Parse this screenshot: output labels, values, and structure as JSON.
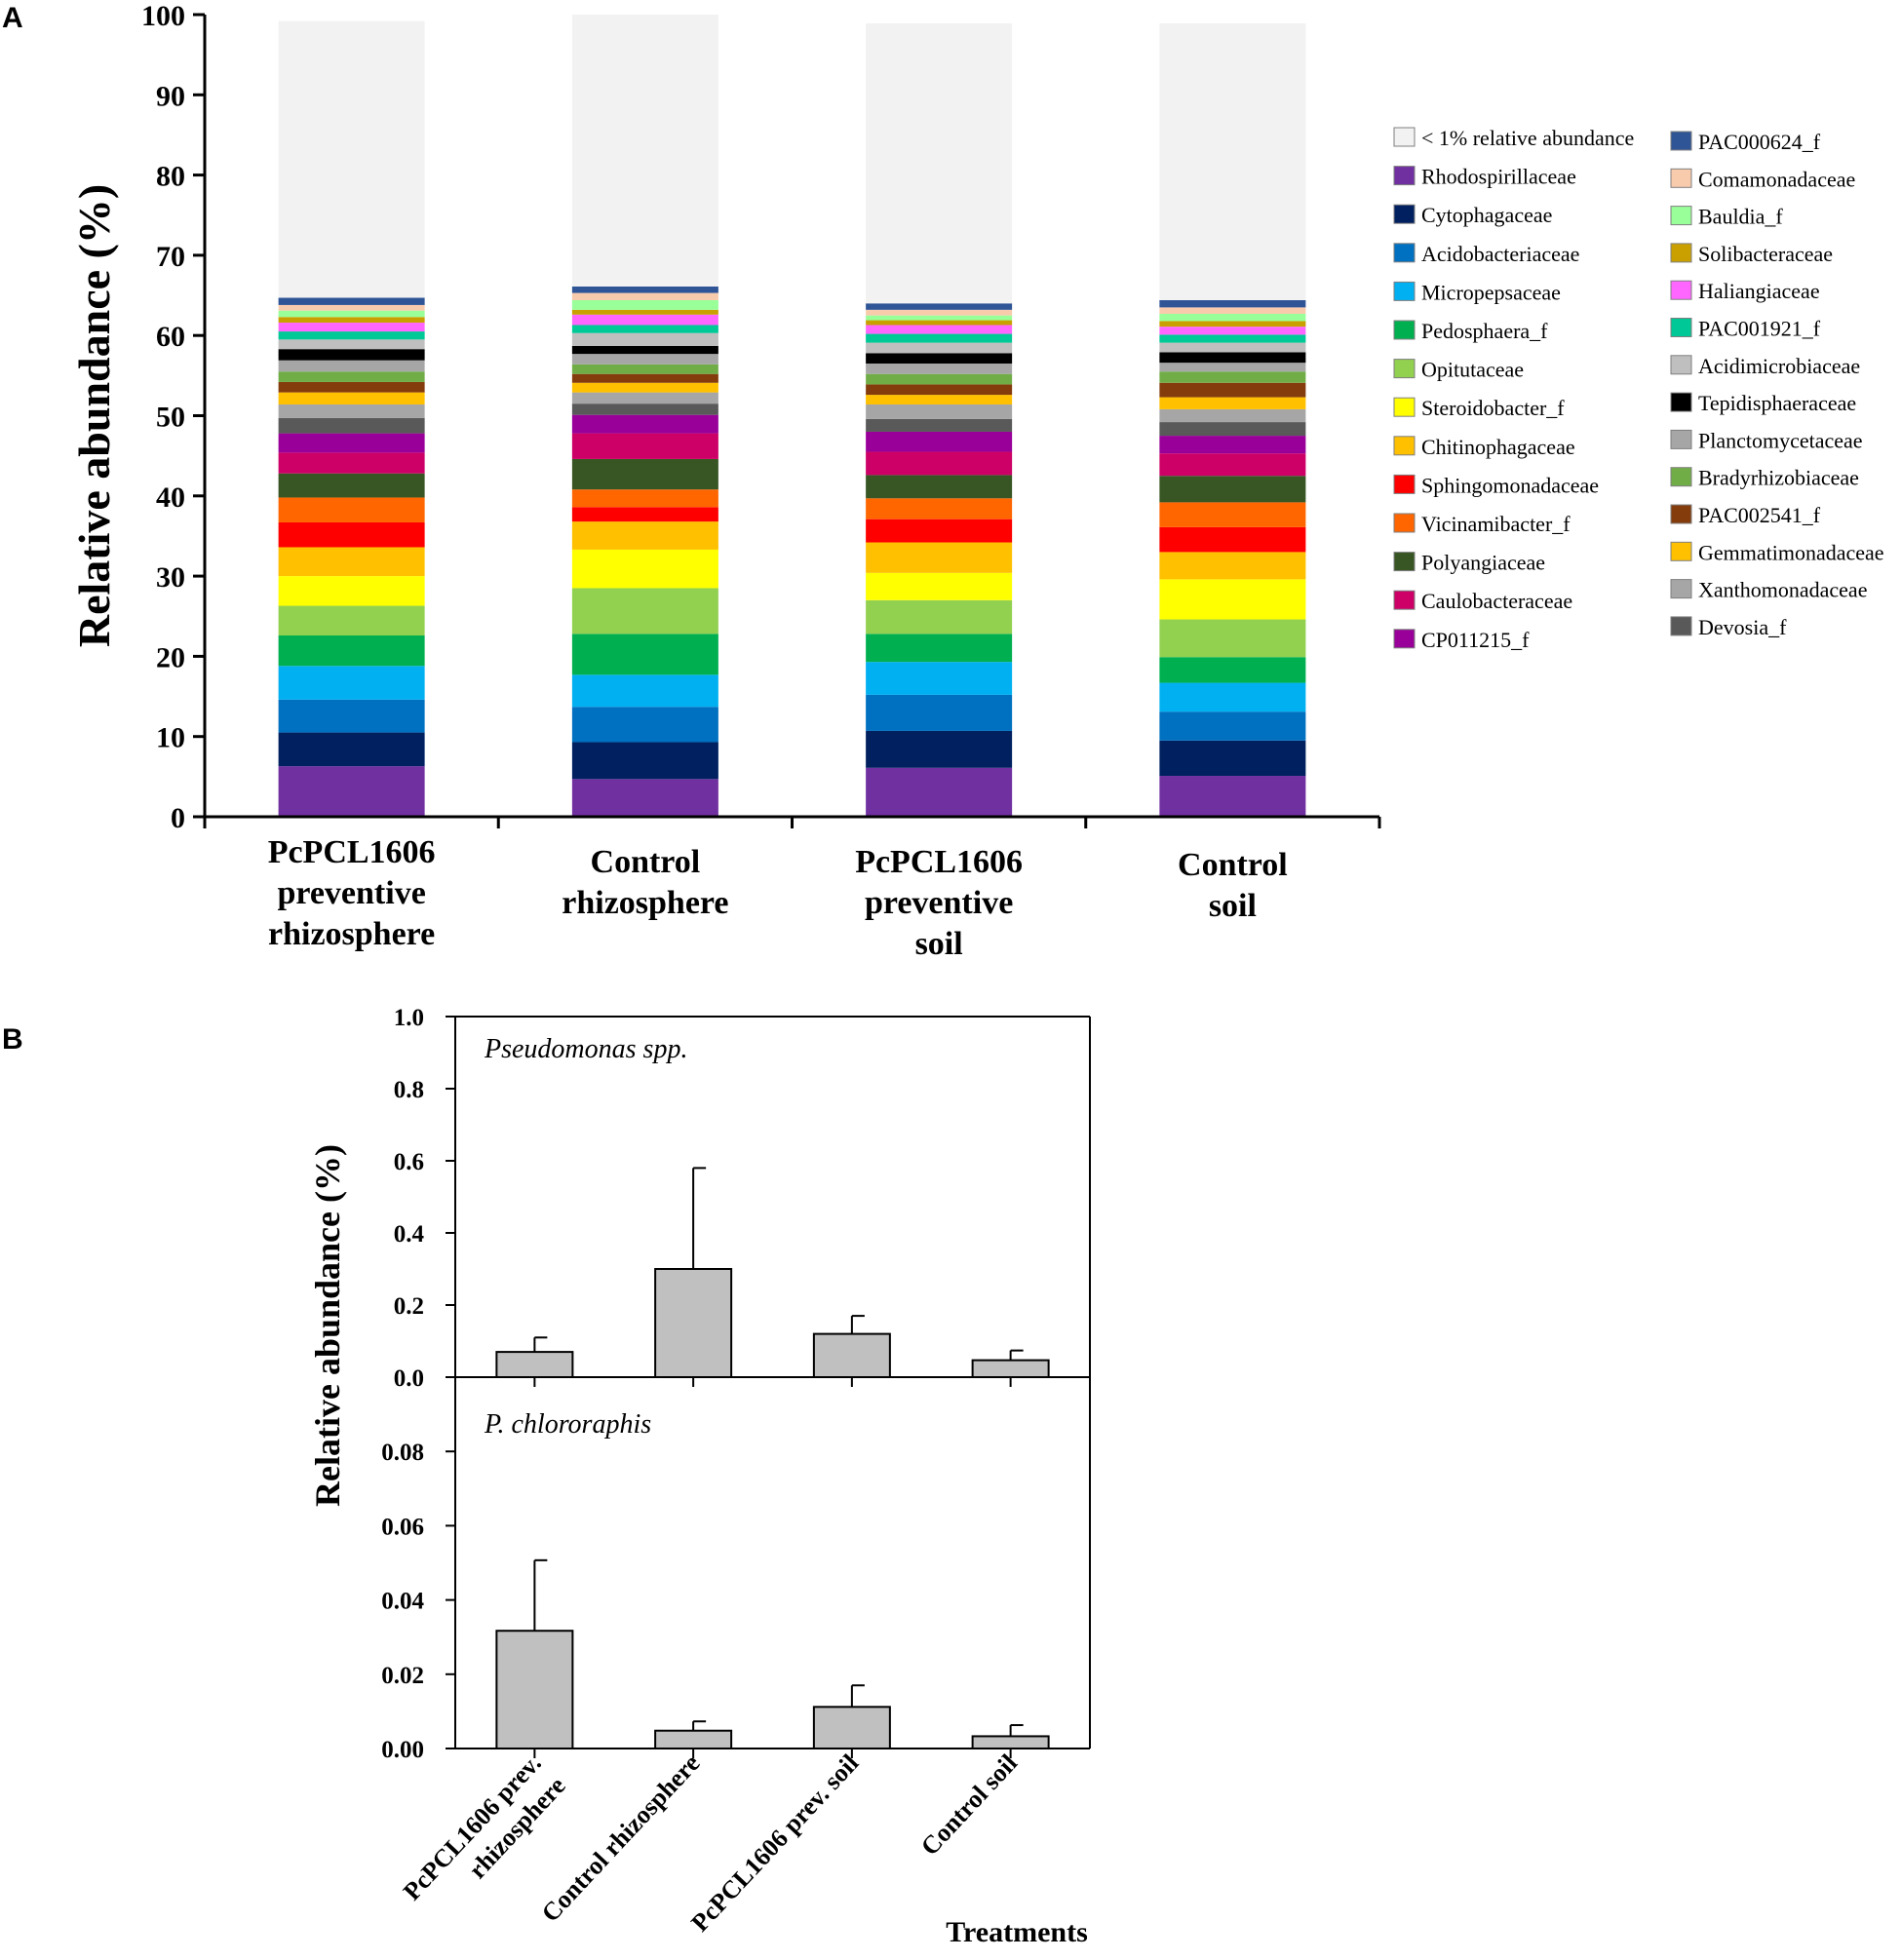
{
  "panel_a_label": "A",
  "panel_b_label": "B",
  "chart_data": [
    {
      "type": "bar",
      "stacked": true,
      "ylabel": "Relative abundance (%)",
      "ylim": [
        0,
        100
      ],
      "yticks": [
        0,
        10,
        20,
        30,
        40,
        50,
        60,
        70,
        80,
        90,
        100
      ],
      "categories": [
        [
          "PcPCL1606",
          "preventive",
          "rhizosphere"
        ],
        [
          "Control",
          "rhizosphere"
        ],
        [
          "PcPCL1606",
          "preventive",
          "soil"
        ],
        [
          "Control",
          "soil"
        ]
      ],
      "series": [
        {
          "name": "Rhodospirillaceae",
          "color": "#7030a0",
          "values": [
            6.3,
            4.7,
            6.1,
            5.1
          ]
        },
        {
          "name": "Cytophagaceae",
          "color": "#002060",
          "values": [
            4.2,
            4.6,
            4.6,
            4.4
          ]
        },
        {
          "name": "Acidobacteriaceae",
          "color": "#0070c0",
          "values": [
            4.1,
            4.4,
            4.5,
            3.6
          ]
        },
        {
          "name": "Micropepsaceae",
          "color": "#00b0f0",
          "values": [
            4.2,
            4.0,
            4.1,
            3.6
          ]
        },
        {
          "name": "Pedosphaera_f",
          "color": "#00b050",
          "values": [
            3.8,
            5.1,
            3.5,
            3.2
          ]
        },
        {
          "name": "Opitutaceae",
          "color": "#92d050",
          "values": [
            3.7,
            5.7,
            4.2,
            4.7
          ]
        },
        {
          "name": "Steroidobacter_f",
          "color": "#ffff00",
          "values": [
            3.7,
            4.8,
            3.4,
            5.0
          ]
        },
        {
          "name": "Chitinophagaceae",
          "color": "#ffc000",
          "values": [
            3.6,
            3.5,
            3.8,
            3.4
          ]
        },
        {
          "name": "Sphingomonadaceae",
          "color": "#ff0000",
          "values": [
            3.1,
            1.8,
            2.9,
            3.1
          ]
        },
        {
          "name": "Vicinamibacter_f",
          "color": "#ff6600",
          "values": [
            3.1,
            2.2,
            2.6,
            3.1
          ]
        },
        {
          "name": "Polyangiaceae",
          "color": "#375623",
          "values": [
            3.0,
            3.8,
            2.9,
            3.3
          ]
        },
        {
          "name": "Caulobacteraceae",
          "color": "#cc0066",
          "values": [
            2.6,
            3.2,
            2.9,
            2.8
          ]
        },
        {
          "name": "CP011215_f",
          "color": "#990099",
          "values": [
            2.4,
            2.3,
            2.5,
            2.2
          ]
        },
        {
          "name": "Devosia_f",
          "color": "#595959",
          "values": [
            1.9,
            1.4,
            1.6,
            1.7
          ]
        },
        {
          "name": "Xanthomonadaceae",
          "color": "#a6a6a6",
          "values": [
            1.7,
            1.4,
            1.8,
            1.6
          ]
        },
        {
          "name": "Gemmatimonadaceae",
          "color": "#ffc000",
          "values": [
            1.5,
            1.2,
            1.2,
            1.5
          ]
        },
        {
          "name": "PAC002541_f",
          "color": "#843c0c",
          "values": [
            1.3,
            1.1,
            1.3,
            1.8
          ]
        },
        {
          "name": "Bradyrhizobiaceae",
          "color": "#70ad47",
          "values": [
            1.3,
            1.2,
            1.3,
            1.4
          ]
        },
        {
          "name": "Planctomycetaceae",
          "color": "#a6a6a6",
          "values": [
            1.4,
            1.3,
            1.3,
            1.1
          ]
        },
        {
          "name": "Tepidisphaeraceae",
          "color": "#000000",
          "values": [
            1.4,
            1.0,
            1.3,
            1.3
          ]
        },
        {
          "name": "Acidimicrobiaceae",
          "color": "#bfbfbf",
          "values": [
            1.2,
            1.6,
            1.3,
            1.2
          ]
        },
        {
          "name": "PAC001921_f",
          "color": "#00c896",
          "values": [
            1.0,
            1.0,
            1.1,
            1.0
          ]
        },
        {
          "name": "Haliangiaceae",
          "color": "#ff66ff",
          "values": [
            1.1,
            1.3,
            1.1,
            1.0
          ]
        },
        {
          "name": "Solibacteraceae",
          "color": "#c9a000",
          "values": [
            0.7,
            0.6,
            0.6,
            0.7
          ]
        },
        {
          "name": "Bauldia_f",
          "color": "#99ff99",
          "values": [
            0.8,
            1.2,
            0.6,
            0.9
          ]
        },
        {
          "name": "Comamonadaceae",
          "color": "#f8cbad",
          "values": [
            0.7,
            0.9,
            0.7,
            0.8
          ]
        },
        {
          "name": "PAC000624_f",
          "color": "#2f5597",
          "values": [
            0.9,
            0.8,
            0.8,
            0.9
          ]
        },
        {
          "name": "< 1% relative abundance",
          "color": "#f2f2f2",
          "values": [
            34.5,
            33.9,
            34.9,
            34.5
          ]
        }
      ],
      "legend_columns": [
        [
          "< 1% relative abundance",
          "Rhodospirillaceae",
          "Cytophagaceae",
          "Acidobacteriaceae",
          "Micropepsaceae",
          "Pedosphaera_f",
          " Opitutaceae",
          "Steroidobacter_f",
          "Chitinophagaceae",
          "Sphingomonadaceae",
          "Vicinamibacter_f",
          "Polyangiaceae",
          "Caulobacteraceae",
          "CP011215_f"
        ],
        [
          "PAC000624_f",
          "Comamonadaceae",
          "Bauldia_f",
          "Solibacteraceae",
          "Haliangiaceae",
          "PAC001921_f",
          "Acidimicrobiaceae",
          "Tepidisphaeraceae",
          "Planctomycetaceae",
          "Bradyrhizobiaceae",
          "PAC002541_f",
          "Gemmatimonadaceae",
          "Xanthomonadaceae",
          "Devosia_f"
        ]
      ],
      "legend_colors": [
        [
          "#f2f2f2",
          "#7030a0",
          "#002060",
          "#0070c0",
          "#00b0f0",
          "#00b050",
          "#92d050",
          "#ffff00",
          "#ffc000",
          "#ff0000",
          "#ff6600",
          "#375623",
          "#cc0066",
          "#990099"
        ],
        [
          "#2f5597",
          "#f8cbad",
          "#99ff99",
          "#c9a000",
          "#ff66ff",
          "#00c896",
          "#bfbfbf",
          "#000000",
          "#a6a6a6",
          "#70ad47",
          "#843c0c",
          "#ffc000",
          "#a6a6a6",
          "#595959"
        ]
      ]
    },
    {
      "type": "bar",
      "subtitle": "Pseudomonas spp.",
      "ylabel": "Relative abundance (%)",
      "ylim": [
        0,
        1.0
      ],
      "yticks": [
        "0.0",
        "0.2",
        "0.4",
        "0.6",
        "0.8",
        "1.0"
      ],
      "categories": [
        "PcPCL1606 prev. rhizosphere",
        "Control rhizosphere",
        "PcPCL1606 prev. soil",
        "Control soil"
      ],
      "values": [
        0.07,
        0.3,
        0.12,
        0.047
      ],
      "errors": [
        0.04,
        0.28,
        0.05,
        0.027
      ],
      "bar_color": "#c0c0c0"
    },
    {
      "type": "bar",
      "subtitle": "P. chlororaphis",
      "ylim": [
        0,
        0.1
      ],
      "yticks": [
        "0.00",
        "0.02",
        "0.04",
        "0.06",
        "0.08"
      ],
      "categories": [
        [
          "PcPCL1606 prev.",
          "rhizosphere"
        ],
        [
          "Control rhizosphere"
        ],
        [
          "PcPCL1606 prev. soil"
        ],
        [
          "Control soil"
        ]
      ],
      "values": [
        0.0317,
        0.0048,
        0.0112,
        0.0033
      ],
      "errors": [
        0.019,
        0.0025,
        0.0058,
        0.003
      ],
      "xlabel": "Treatments",
      "bar_color": "#c0c0c0"
    }
  ]
}
